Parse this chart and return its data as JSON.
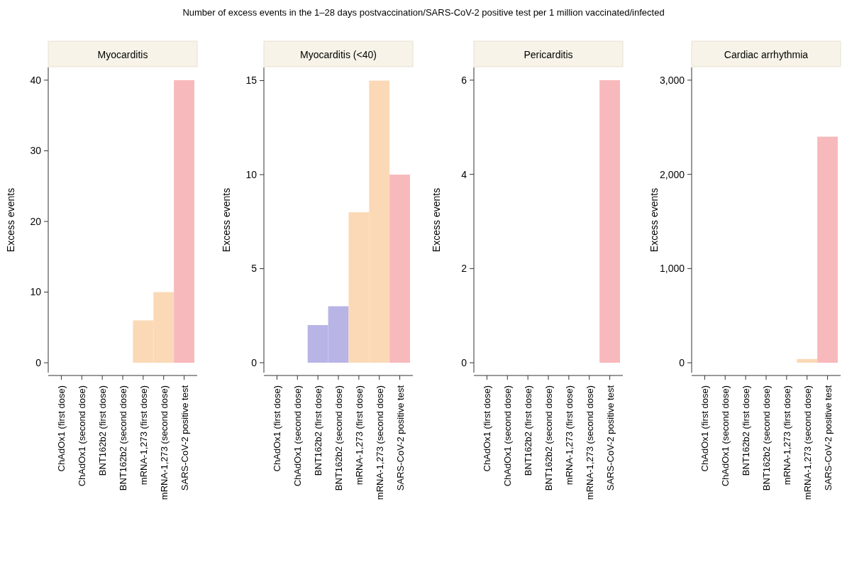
{
  "chart_data": [
    {
      "type": "bar",
      "title": "Myocarditis",
      "ylabel": "Excess events",
      "annotations": [
        "Number of excess events in the 1–28 days postvaccination/SARS-CoV-2 positive test per 1 million vaccinated/infected"
      ],
      "categories": [
        "ChAdOx1 (first dose)",
        "ChAdOx1 (second dose)",
        "BNT162b2 (first dose)",
        "BNT162b2 (second dose)",
        "mRNA-1,273 (first dose)",
        "mRNA-1,273 (second dose)",
        "SARS-CoV-2 positive test"
      ],
      "values": [
        null,
        null,
        null,
        null,
        6,
        10,
        40
      ],
      "colors": [
        null,
        null,
        null,
        null,
        "#fbd9b6",
        "#fbd9b6",
        "#f8b9bd"
      ],
      "ylim": [
        -1.4,
        41.8
      ],
      "yticks": [
        0,
        10,
        20,
        30,
        40
      ],
      "grid": false
    },
    {
      "type": "bar",
      "title": "Myocarditis (<40)",
      "ylabel": "Excess events",
      "categories": [
        "ChAdOx1 (first dose)",
        "ChAdOx1 (second dose)",
        "BNT162b2 (first dose)",
        "BNT162b2 (second dose)",
        "mRNA-1,273 (first dose)",
        "mRNA-1,273 (second dose)",
        "SARS-CoV-2 positive test"
      ],
      "values": [
        null,
        null,
        2,
        3,
        8,
        15,
        10
      ],
      "colors": [
        null,
        null,
        "#b8b4e6",
        "#b8b4e6",
        "#fbd9b6",
        "#fbd9b6",
        "#f8b9bd"
      ],
      "ylim": [
        -0.53,
        15.7
      ],
      "yticks": [
        0,
        5,
        10,
        15
      ],
      "grid": false
    },
    {
      "type": "bar",
      "title": "Pericarditis",
      "ylabel": "Excess events",
      "categories": [
        "ChAdOx1 (first dose)",
        "ChAdOx1 (second dose)",
        "BNT162b2 (first dose)",
        "BNT162b2 (second dose)",
        "mRNA-1,273 (first dose)",
        "mRNA-1,273 (second dose)",
        "SARS-CoV-2 positive test"
      ],
      "values": [
        null,
        null,
        null,
        null,
        null,
        null,
        6
      ],
      "colors": [
        null,
        null,
        null,
        null,
        null,
        null,
        "#f8b9bd"
      ],
      "ylim": [
        -0.21,
        6.27
      ],
      "yticks": [
        0,
        2,
        4,
        6
      ],
      "grid": false
    },
    {
      "type": "bar",
      "title": "Cardiac arrhythmia",
      "ylabel": "Excess events",
      "categories": [
        "ChAdOx1 (first dose)",
        "ChAdOx1 (second dose)",
        "BNT162b2 (first dose)",
        "BNT162b2 (second dose)",
        "mRNA-1,273 (first dose)",
        "mRNA-1,273 (second dose)",
        "SARS-CoV-2 positive test"
      ],
      "values": [
        null,
        null,
        null,
        null,
        null,
        40,
        2400
      ],
      "colors": [
        null,
        null,
        null,
        null,
        null,
        "#fbd9b6",
        "#f8b9bd"
      ],
      "ylim": [
        -105,
        3135
      ],
      "yticks": [
        0,
        {
          "value": 1000,
          "label": "1,000"
        },
        {
          "value": 2000,
          "label": "2,000"
        },
        {
          "value": 3000,
          "label": "3,000"
        }
      ],
      "grid": false
    }
  ]
}
